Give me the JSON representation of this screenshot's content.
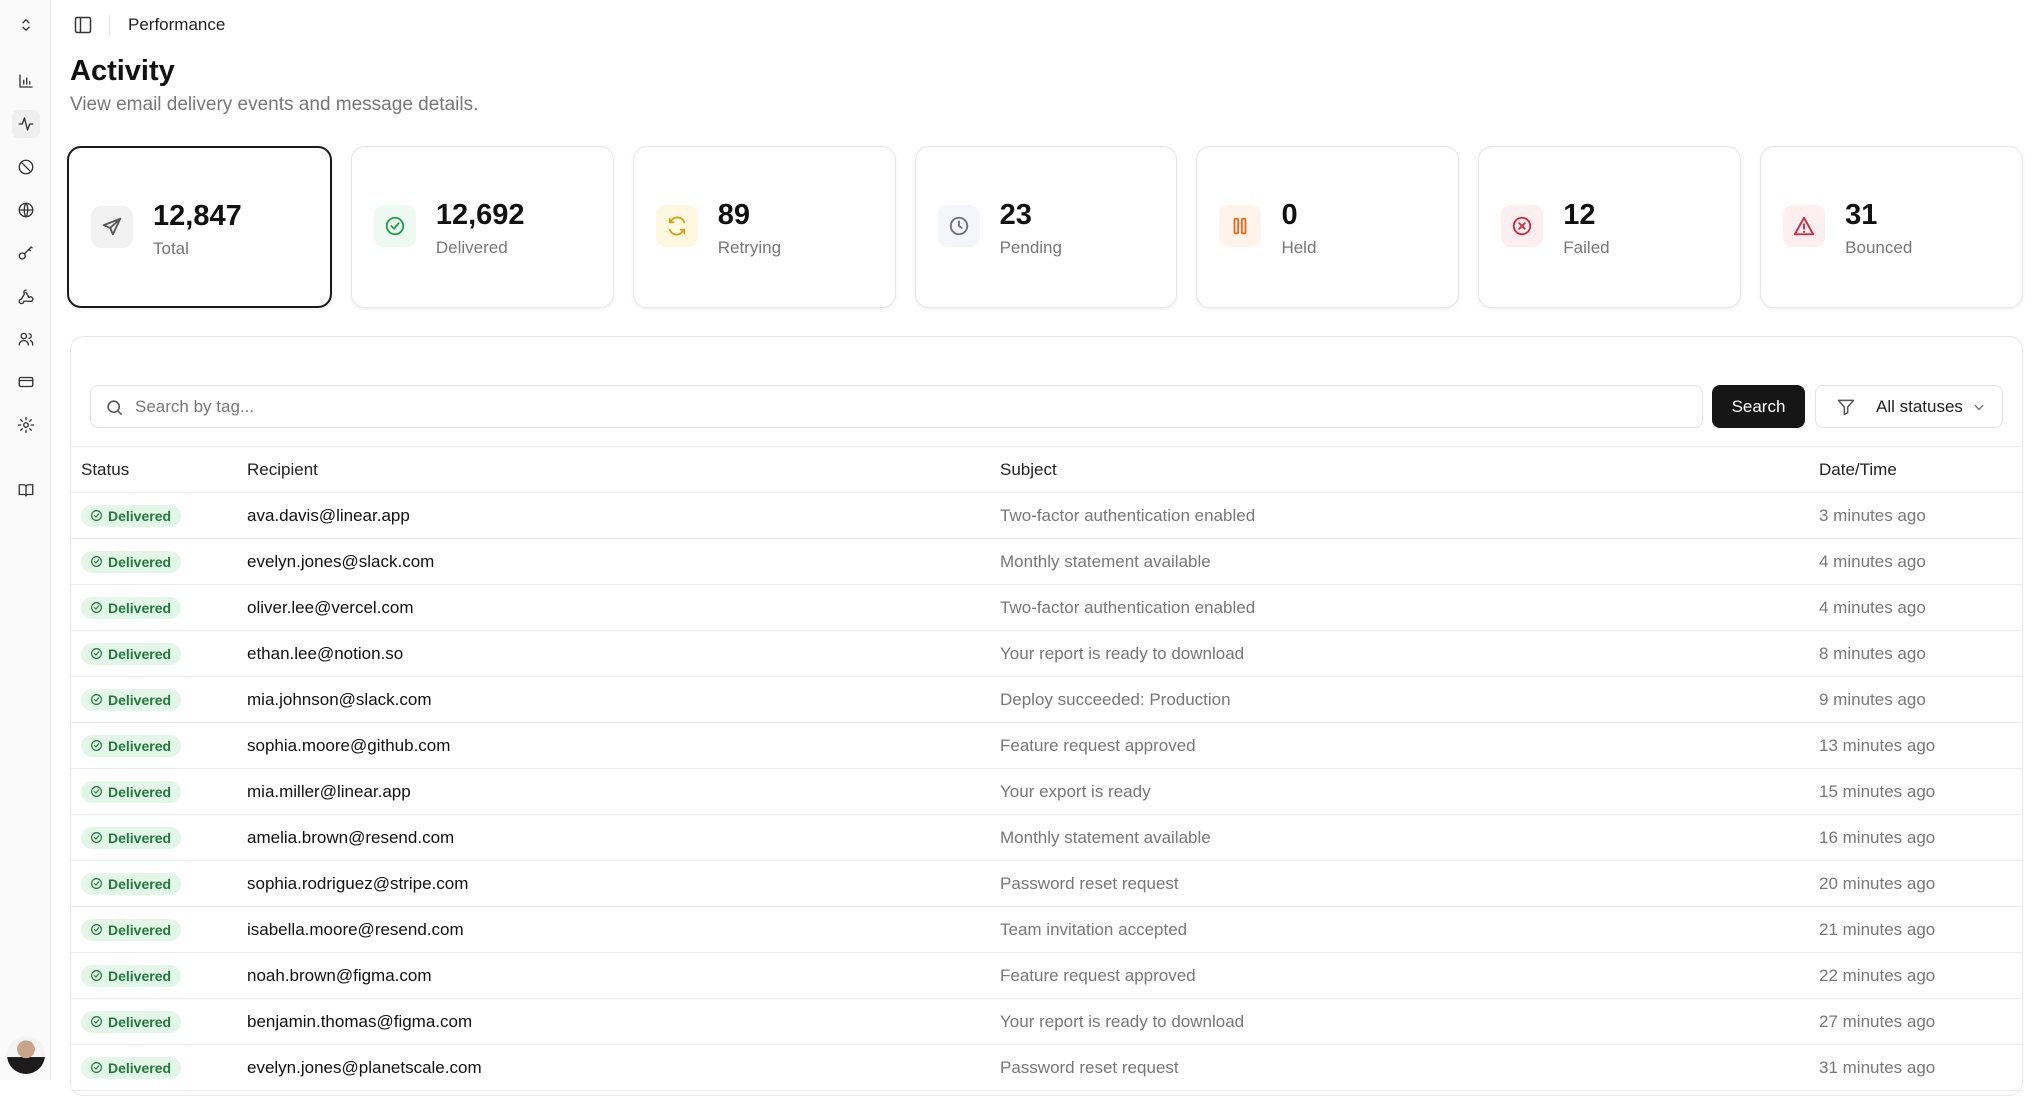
{
  "header": {
    "breadcrumb": "Performance"
  },
  "page": {
    "title": "Activity",
    "subtitle": "View email delivery events and message details."
  },
  "sidebar": {
    "items": [
      "workspace-switcher",
      "analytics",
      "activity",
      "suppressions",
      "domains",
      "api-keys",
      "webhooks",
      "audience",
      "billing",
      "settings",
      "docs"
    ],
    "active": "activity"
  },
  "stats": [
    {
      "value": "12,847",
      "label": "Total",
      "icon": "send-icon",
      "color": "#555555",
      "bg": "#f2f2f2",
      "selected": true
    },
    {
      "value": "12,692",
      "label": "Delivered",
      "icon": "check-circle-icon",
      "color": "#22a04b",
      "bg": "#eefaf1"
    },
    {
      "value": "89",
      "label": "Retrying",
      "icon": "refresh-icon",
      "color": "#d4a017",
      "bg": "#fff8e1"
    },
    {
      "value": "23",
      "label": "Pending",
      "icon": "clock-icon",
      "color": "#6b7280",
      "bg": "#f4f6f9"
    },
    {
      "value": "0",
      "label": "Held",
      "icon": "pause-icon",
      "color": "#ea6a1a",
      "bg": "#fff4ea"
    },
    {
      "value": "12",
      "label": "Failed",
      "icon": "x-circle-icon",
      "color": "#d7263d",
      "bg": "#fdeff0"
    },
    {
      "value": "31",
      "label": "Bounced",
      "icon": "alert-triangle-icon",
      "color": "#d7263d",
      "bg": "#fdeff0"
    }
  ],
  "toolbar": {
    "search_placeholder": "Search by tag...",
    "search_value": "",
    "search_label": "Search",
    "filter_value": "All statuses"
  },
  "table": {
    "columns": [
      "Status",
      "Recipient",
      "Subject",
      "Date/Time"
    ],
    "rows": [
      {
        "status": "Delivered",
        "recipient": "ava.davis@linear.app",
        "subject": "Two-factor authentication enabled",
        "time": "3 minutes ago"
      },
      {
        "status": "Delivered",
        "recipient": "evelyn.jones@slack.com",
        "subject": "Monthly statement available",
        "time": "4 minutes ago"
      },
      {
        "status": "Delivered",
        "recipient": "oliver.lee@vercel.com",
        "subject": "Two-factor authentication enabled",
        "time": "4 minutes ago"
      },
      {
        "status": "Delivered",
        "recipient": "ethan.lee@notion.so",
        "subject": "Your report is ready to download",
        "time": "8 minutes ago"
      },
      {
        "status": "Delivered",
        "recipient": "mia.johnson@slack.com",
        "subject": "Deploy succeeded: Production",
        "time": "9 minutes ago"
      },
      {
        "status": "Delivered",
        "recipient": "sophia.moore@github.com",
        "subject": "Feature request approved",
        "time": "13 minutes ago"
      },
      {
        "status": "Delivered",
        "recipient": "mia.miller@linear.app",
        "subject": "Your export is ready",
        "time": "15 minutes ago"
      },
      {
        "status": "Delivered",
        "recipient": "amelia.brown@resend.com",
        "subject": "Monthly statement available",
        "time": "16 minutes ago"
      },
      {
        "status": "Delivered",
        "recipient": "sophia.rodriguez@stripe.com",
        "subject": "Password reset request",
        "time": "20 minutes ago"
      },
      {
        "status": "Delivered",
        "recipient": "isabella.moore@resend.com",
        "subject": "Team invitation accepted",
        "time": "21 minutes ago"
      },
      {
        "status": "Delivered",
        "recipient": "noah.brown@figma.com",
        "subject": "Feature request approved",
        "time": "22 minutes ago"
      },
      {
        "status": "Delivered",
        "recipient": "benjamin.thomas@figma.com",
        "subject": "Your report is ready to download",
        "time": "27 minutes ago"
      },
      {
        "status": "Delivered",
        "recipient": "evelyn.jones@planetscale.com",
        "subject": "Password reset request",
        "time": "31 minutes ago"
      }
    ]
  }
}
